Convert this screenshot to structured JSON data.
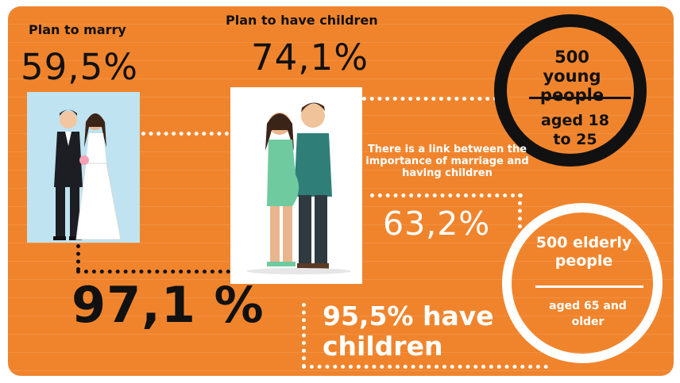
{
  "marry": {
    "label": "Plan to marry",
    "value": "59,5%"
  },
  "children_plan": {
    "label": "Plan to have children",
    "value": "74,1%"
  },
  "young": {
    "title": "500 young people",
    "sub": "aged 18 to 25"
  },
  "link": {
    "text": "There is a link between the importance of marriage and having children",
    "value": "63,2%"
  },
  "elderly": {
    "title": "500 elderly people",
    "sub": "aged 65 and older"
  },
  "married_total": {
    "value": "97,1 %"
  },
  "have_children": {
    "text": "95,5% have children"
  },
  "colors": {
    "background": "#f0842c",
    "accent_dark": "#111111",
    "white": "#ffffff",
    "couple_panel_bg": "#bfe3f0"
  },
  "icons": [
    "wedding-couple-illustration",
    "pregnant-couple-illustration"
  ]
}
